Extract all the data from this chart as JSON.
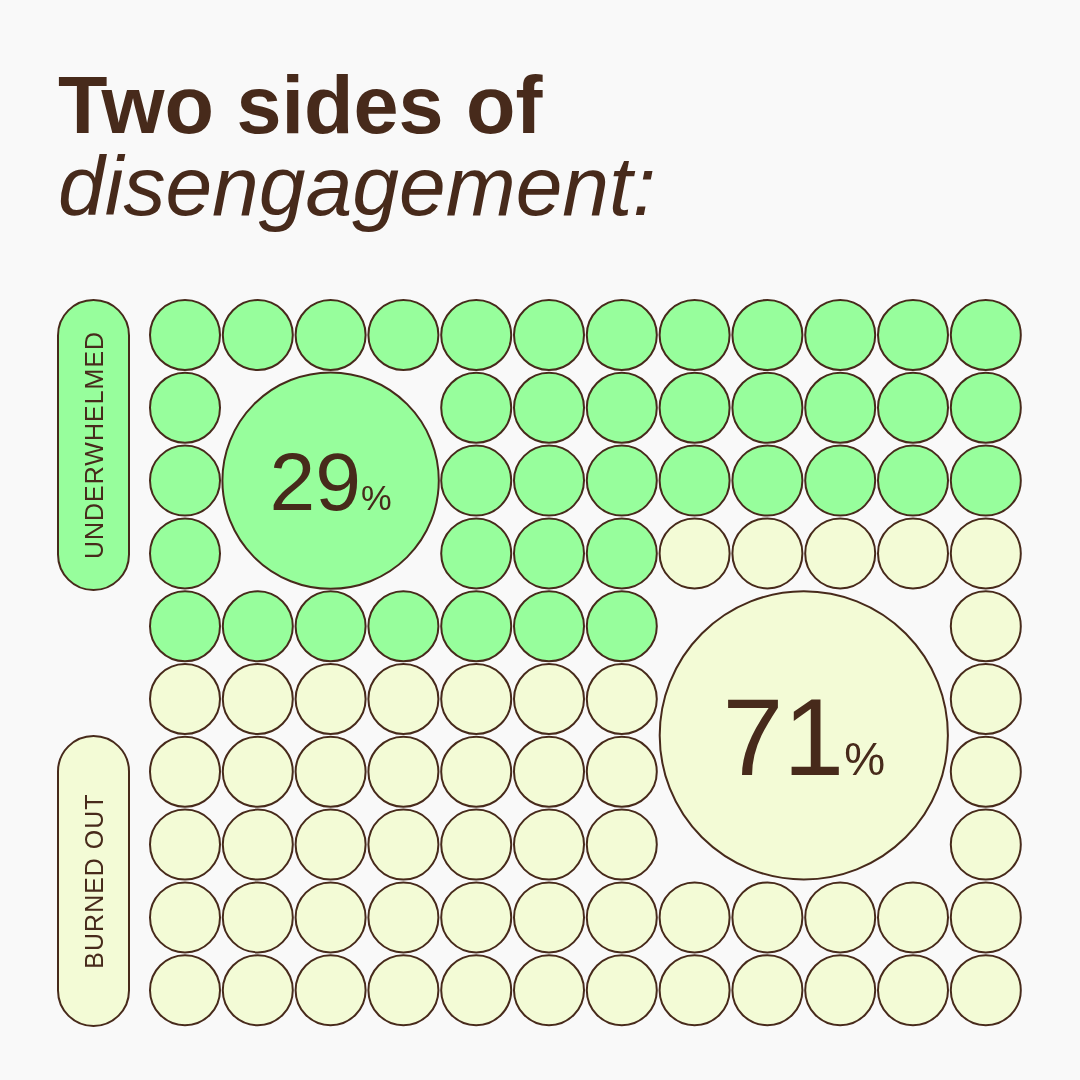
{
  "chart_data": {
    "type": "other",
    "title": "Two sides of",
    "subtitle": "disengagement:",
    "categories": [
      "UNDERWHELMED",
      "BURNED OUT"
    ],
    "values": [
      29,
      71
    ],
    "colors": [
      "#97fe9c",
      "#f3fbd6"
    ],
    "value_labels": [
      "29%",
      "71%"
    ]
  }
}
